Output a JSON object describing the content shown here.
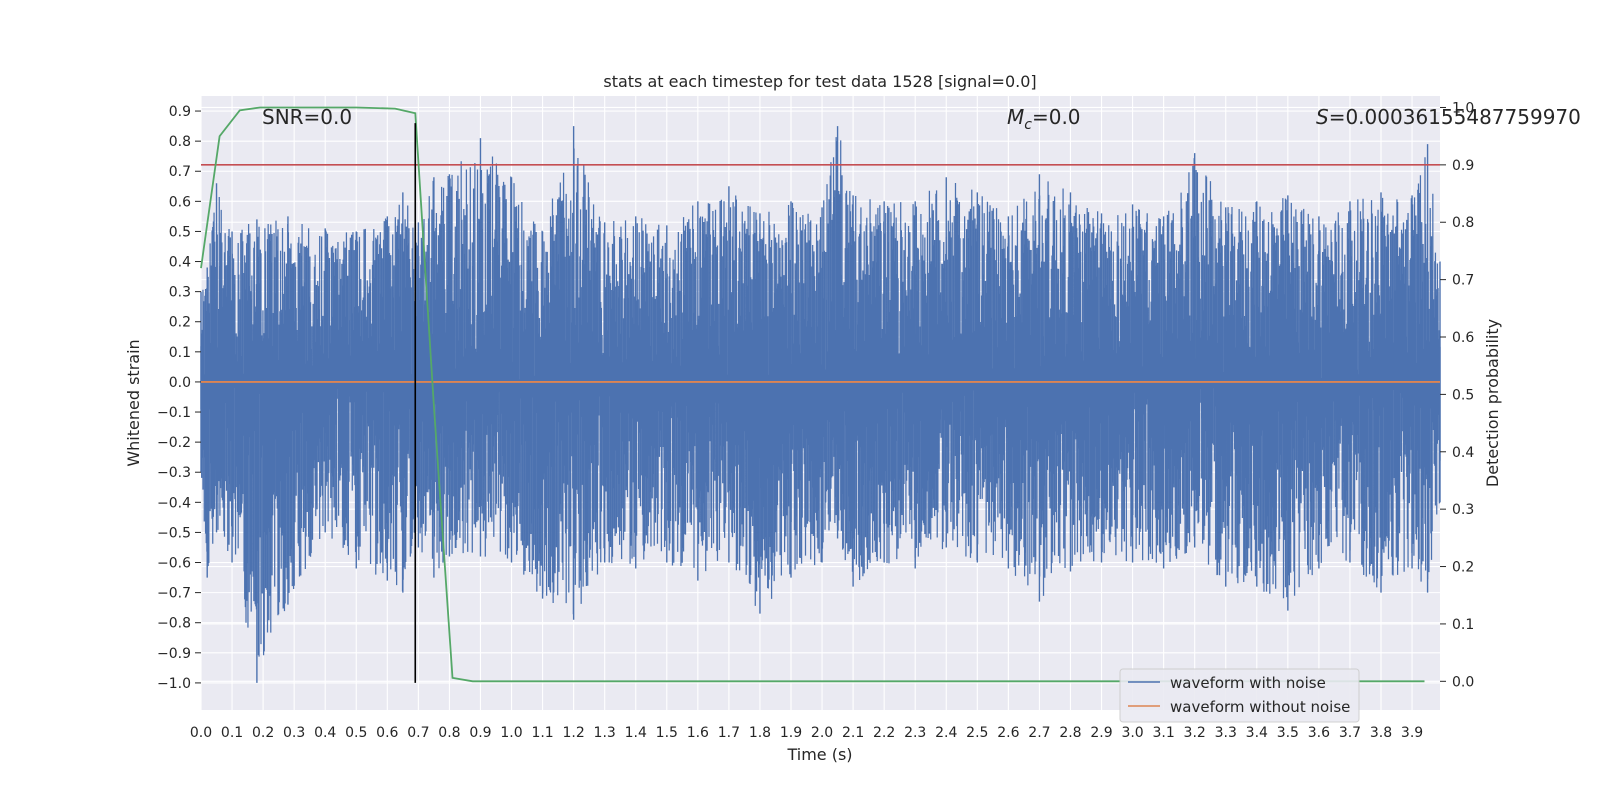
{
  "chart_data": {
    "type": "line",
    "title": "stats at each timestep for test data 1528 [signal=0.0]",
    "xlabel": "Time (s)",
    "ylabel": "Whitened strain",
    "y2label": "Detection probability",
    "xlim": [
      0.0,
      3.99
    ],
    "ylim": [
      -1.09,
      0.95
    ],
    "y2lim": [
      -0.05,
      1.02
    ],
    "x_ticks": [
      "0.0",
      "0.1",
      "0.2",
      "0.3",
      "0.4",
      "0.5",
      "0.6",
      "0.7",
      "0.8",
      "0.9",
      "1.0",
      "1.1",
      "1.2",
      "1.3",
      "1.4",
      "1.5",
      "1.6",
      "1.7",
      "1.8",
      "1.9",
      "2.0",
      "2.1",
      "2.2",
      "2.3",
      "2.4",
      "2.5",
      "2.6",
      "2.7",
      "2.8",
      "2.9",
      "3.0",
      "3.1",
      "3.2",
      "3.3",
      "3.4",
      "3.5",
      "3.6",
      "3.7",
      "3.8",
      "3.9"
    ],
    "y_ticks": [
      "0.9",
      "0.8",
      "0.7",
      "0.6",
      "0.5",
      "0.4",
      "0.3",
      "0.2",
      "0.1",
      "0.0",
      "-0.1",
      "-0.2",
      "-0.3",
      "-0.4",
      "-0.5",
      "-0.6",
      "-0.7",
      "-0.8",
      "-0.9",
      "-1.0"
    ],
    "y2_ticks": [
      "1.0",
      "0.9",
      "0.8",
      "0.7",
      "0.6",
      "0.5",
      "0.4",
      "0.3",
      "0.2",
      "0.1",
      "0.0"
    ],
    "annotations": {
      "snr": "SNR=0.0",
      "mc_symbol": "M",
      "mc_sub": "c",
      "mc_value": "=0.0",
      "s_symbol": "S",
      "s_value": "=0.00036155487759970"
    },
    "legend": {
      "placement": "lower-right",
      "entries": [
        "waveform with noise",
        "waveform without noise"
      ]
    },
    "series": [
      {
        "name": "waveform with noise",
        "color": "#4c72b0",
        "envelope_x": [
          0.0,
          0.02,
          0.05,
          0.1,
          0.18,
          0.28,
          0.4,
          0.5,
          0.6,
          0.65,
          0.7,
          0.75,
          0.8,
          0.9,
          1.0,
          1.1,
          1.2,
          1.3,
          1.4,
          1.5,
          1.6,
          1.7,
          1.8,
          1.9,
          2.0,
          2.05,
          2.1,
          2.2,
          2.3,
          2.4,
          2.5,
          2.6,
          2.7,
          2.8,
          2.9,
          3.0,
          3.1,
          3.2,
          3.3,
          3.4,
          3.5,
          3.6,
          3.7,
          3.8,
          3.9,
          3.95,
          3.99
        ],
        "envelope_max": [
          0.3,
          0.38,
          0.66,
          0.5,
          0.54,
          0.55,
          0.51,
          0.5,
          0.55,
          0.63,
          0.53,
          0.68,
          0.69,
          0.81,
          0.68,
          0.5,
          0.85,
          0.53,
          0.55,
          0.52,
          0.6,
          0.65,
          0.56,
          0.6,
          0.58,
          0.85,
          0.62,
          0.6,
          0.6,
          0.68,
          0.63,
          0.55,
          0.69,
          0.63,
          0.56,
          0.59,
          0.55,
          0.76,
          0.58,
          0.6,
          0.62,
          0.55,
          0.6,
          0.63,
          0.62,
          0.79,
          0.4
        ],
        "envelope_min": [
          -0.3,
          -0.65,
          -0.5,
          -0.6,
          -1.0,
          -0.74,
          -0.5,
          -0.62,
          -0.66,
          -0.7,
          -0.55,
          -0.65,
          -0.58,
          -0.58,
          -0.6,
          -0.72,
          -0.79,
          -0.6,
          -0.62,
          -0.6,
          -0.66,
          -0.6,
          -0.77,
          -0.65,
          -0.6,
          -0.52,
          -0.68,
          -0.6,
          -0.62,
          -0.55,
          -0.6,
          -0.62,
          -0.73,
          -0.63,
          -0.6,
          -0.6,
          -0.62,
          -0.55,
          -0.68,
          -0.68,
          -0.76,
          -0.62,
          -0.6,
          -0.7,
          -0.62,
          -0.7,
          -0.4
        ]
      },
      {
        "name": "waveform without noise",
        "color": "#dd8452",
        "x": [
          0.0,
          3.99
        ],
        "y": [
          0.0,
          0.0
        ]
      },
      {
        "name": "",
        "color": "#55a868",
        "axis": "right",
        "x": [
          0.0,
          0.06,
          0.125,
          0.19,
          0.25,
          0.31,
          0.5,
          0.625,
          0.69,
          0.75,
          0.81,
          0.875,
          0.94,
          1.0,
          2.0,
          3.0,
          3.94
        ],
        "y": [
          0.72,
          0.95,
          0.995,
          1.0,
          1.0,
          1.0,
          1.0,
          0.998,
          0.99,
          0.48,
          0.006,
          0.0,
          0.0,
          0.0,
          0.0,
          0.0,
          0.0
        ]
      }
    ],
    "threshold": {
      "color": "#c44e52",
      "axis": "right",
      "value": 0.9
    },
    "marker_line": {
      "color": "#000000",
      "x": 0.69,
      "y_from": -1.0,
      "y_to": 0.86
    }
  }
}
